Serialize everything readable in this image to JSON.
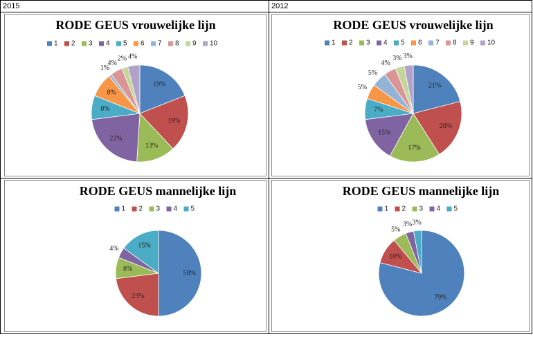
{
  "headers": [
    "2015",
    "2012"
  ],
  "chart_data": [
    {
      "type": "pie",
      "title": "RODE GEUS vrouwelijke lijn",
      "categories": [
        "1",
        "2",
        "3",
        "4",
        "5",
        "6",
        "7",
        "8",
        "9",
        "10"
      ],
      "values": [
        19,
        19,
        13,
        22,
        8,
        8,
        1,
        4,
        2,
        4
      ],
      "value_labels": [
        "19%",
        "19%",
        "13%",
        "22%",
        "8%",
        "8%",
        "1%",
        "4%",
        "2%",
        "4%"
      ],
      "colors": [
        "#4f81bd",
        "#c0504d",
        "#9bbb59",
        "#8064a2",
        "#4bacc6",
        "#f79646",
        "#95b3d7",
        "#d99694",
        "#c3d69b",
        "#b3a2c7"
      ]
    },
    {
      "type": "pie",
      "title": "RODE GEUS vrouwelijke lijn",
      "categories": [
        "1",
        "2",
        "3",
        "4",
        "5",
        "6",
        "7",
        "8",
        "9",
        "10"
      ],
      "values": [
        21,
        20,
        17,
        15,
        7,
        5,
        5,
        4,
        3,
        3
      ],
      "value_labels": [
        "21%",
        "20%",
        "17%",
        "15%",
        "7%",
        "5%",
        "5%",
        "4%",
        "3%",
        "3%"
      ],
      "colors": [
        "#4f81bd",
        "#c0504d",
        "#9bbb59",
        "#8064a2",
        "#4bacc6",
        "#f79646",
        "#95b3d7",
        "#d99694",
        "#c3d69b",
        "#b3a2c7"
      ]
    },
    {
      "type": "pie",
      "title": "RODE GEUS mannelijke lijn",
      "categories": [
        "1",
        "2",
        "3",
        "4",
        "5"
      ],
      "values": [
        50,
        23,
        8,
        4,
        15
      ],
      "value_labels": [
        "50%",
        "23%",
        "8%",
        "4%",
        "15%"
      ],
      "colors": [
        "#4f81bd",
        "#c0504d",
        "#9bbb59",
        "#8064a2",
        "#4bacc6"
      ]
    },
    {
      "type": "pie",
      "title": "RODE GEUS mannelijke lijn",
      "categories": [
        "1",
        "2",
        "3",
        "4",
        "5"
      ],
      "values": [
        79,
        10,
        5,
        3,
        3
      ],
      "value_labels": [
        "79%",
        "10%",
        "5%",
        "3%",
        "3%"
      ],
      "colors": [
        "#4f81bd",
        "#c0504d",
        "#9bbb59",
        "#8064a2",
        "#4bacc6"
      ]
    }
  ]
}
